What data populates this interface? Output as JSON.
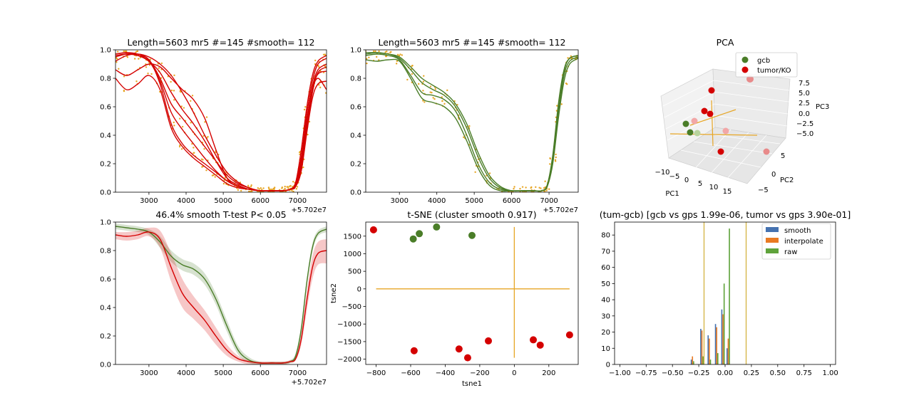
{
  "colors": {
    "red": "#d40000",
    "green": "#4a7d28",
    "orange": "#e7a626",
    "blue": "#4572b0",
    "hist_orange": "#e97a22",
    "hist_green": "#5fa33b",
    "vline": "#d3b240",
    "pink": "#f2a7a7",
    "lightgreen": "#b8d49e"
  },
  "chart_data": [
    {
      "id": "p1",
      "type": "line",
      "title": "Length=5603 mr5 #=145 #smooth= 112",
      "xlim": [
        2100,
        7780
      ],
      "ylim": [
        0,
        1
      ],
      "xticks": [
        {
          "v": 3000,
          "t": "3000"
        },
        {
          "v": 4000,
          "t": "4000"
        },
        {
          "v": 5000,
          "t": "5000"
        },
        {
          "v": 6000,
          "t": "6000"
        },
        {
          "v": 7000,
          "t": "7000"
        }
      ],
      "yticks": [
        {
          "v": 0,
          "t": "0.0"
        },
        {
          "v": 0.2,
          "t": "0.2"
        },
        {
          "v": 0.4,
          "t": "0.4"
        },
        {
          "v": 0.6,
          "t": "0.6"
        },
        {
          "v": 0.8,
          "t": "0.8"
        },
        {
          "v": 1.0,
          "t": "1.0"
        }
      ],
      "offset": "+5.702e7",
      "x": [
        2100,
        2400,
        2700,
        3000,
        3300,
        3600,
        3900,
        4200,
        4500,
        4800,
        5100,
        5400,
        5700,
        6000,
        6300,
        6600,
        6800,
        6950,
        7100,
        7250,
        7400,
        7550,
        7780
      ],
      "series": [
        {
          "values": [
            0.97,
            0.98,
            0.97,
            0.93,
            0.8,
            0.62,
            0.52,
            0.42,
            0.32,
            0.22,
            0.12,
            0.06,
            0.03,
            0.01,
            0.01,
            0.01,
            0.02,
            0.06,
            0.25,
            0.55,
            0.78,
            0.9,
            0.94
          ]
        },
        {
          "values": [
            0.95,
            0.97,
            0.96,
            0.92,
            0.78,
            0.56,
            0.44,
            0.34,
            0.24,
            0.15,
            0.08,
            0.04,
            0.02,
            0.01,
            0.01,
            0.01,
            0.02,
            0.05,
            0.22,
            0.5,
            0.74,
            0.86,
            0.9
          ]
        },
        {
          "values": [
            0.92,
            0.96,
            0.97,
            0.95,
            0.9,
            0.82,
            0.7,
            0.56,
            0.4,
            0.26,
            0.14,
            0.07,
            0.03,
            0.01,
            0.01,
            0.01,
            0.02,
            0.04,
            0.18,
            0.45,
            0.7,
            0.84,
            0.88
          ]
        },
        {
          "values": [
            0.86,
            0.82,
            0.86,
            0.9,
            0.88,
            0.8,
            0.72,
            0.65,
            0.52,
            0.3,
            0.1,
            0.04,
            0.02,
            0.01,
            0.01,
            0.01,
            0.02,
            0.05,
            0.2,
            0.48,
            0.72,
            0.83,
            0.85
          ]
        },
        {
          "values": [
            0.8,
            0.72,
            0.76,
            0.82,
            0.72,
            0.45,
            0.32,
            0.24,
            0.18,
            0.12,
            0.06,
            0.03,
            0.02,
            0.01,
            0.01,
            0.01,
            0.02,
            0.04,
            0.15,
            0.42,
            0.66,
            0.76,
            0.78
          ]
        },
        {
          "values": [
            0.97,
            0.98,
            0.96,
            0.93,
            0.76,
            0.48,
            0.34,
            0.26,
            0.2,
            0.14,
            0.08,
            0.04,
            0.02,
            0.01,
            0.01,
            0.01,
            0.02,
            0.07,
            0.3,
            0.6,
            0.82,
            0.92,
            0.96
          ]
        },
        {
          "values": [
            0.96,
            0.97,
            0.96,
            0.92,
            0.84,
            0.7,
            0.58,
            0.48,
            0.36,
            0.22,
            0.1,
            0.05,
            0.02,
            0.01,
            0.01,
            0.01,
            0.02,
            0.05,
            0.2,
            0.5,
            0.72,
            0.8,
            0.72
          ]
        }
      ]
    },
    {
      "id": "p2",
      "type": "line",
      "title": "Length=5603 mr5 #=145 #smooth= 112",
      "xlim": [
        2100,
        7780
      ],
      "ylim": [
        0,
        1
      ],
      "xticks": [
        {
          "v": 3000,
          "t": "3000"
        },
        {
          "v": 4000,
          "t": "4000"
        },
        {
          "v": 5000,
          "t": "5000"
        },
        {
          "v": 6000,
          "t": "6000"
        },
        {
          "v": 7000,
          "t": "7000"
        }
      ],
      "yticks": [
        {
          "v": 0,
          "t": "0.0"
        },
        {
          "v": 0.2,
          "t": "0.2"
        },
        {
          "v": 0.4,
          "t": "0.4"
        },
        {
          "v": 0.6,
          "t": "0.6"
        },
        {
          "v": 0.8,
          "t": "0.8"
        },
        {
          "v": 1.0,
          "t": "1.0"
        }
      ],
      "offset": "+5.702e7",
      "x": [
        2100,
        2400,
        2700,
        3000,
        3300,
        3600,
        3900,
        4200,
        4500,
        4800,
        5100,
        5400,
        5700,
        6000,
        6300,
        6600,
        6800,
        6950,
        7100,
        7250,
        7400,
        7550,
        7780
      ],
      "series": [
        {
          "values": [
            0.98,
            0.98,
            0.97,
            0.94,
            0.86,
            0.77,
            0.72,
            0.68,
            0.6,
            0.45,
            0.25,
            0.1,
            0.03,
            0.01,
            0.01,
            0.01,
            0.01,
            0.05,
            0.25,
            0.6,
            0.85,
            0.94,
            0.96
          ]
        },
        {
          "values": [
            0.96,
            0.97,
            0.96,
            0.93,
            0.82,
            0.7,
            0.68,
            0.65,
            0.57,
            0.4,
            0.2,
            0.07,
            0.02,
            0.01,
            0.01,
            0.01,
            0.01,
            0.04,
            0.22,
            0.55,
            0.82,
            0.92,
            0.95
          ]
        },
        {
          "values": [
            0.93,
            0.92,
            0.93,
            0.92,
            0.8,
            0.66,
            0.63,
            0.6,
            0.52,
            0.36,
            0.17,
            0.05,
            0.01,
            0.01,
            0.01,
            0.01,
            0.01,
            0.04,
            0.2,
            0.52,
            0.78,
            0.9,
            0.94
          ]
        },
        {
          "values": [
            0.97,
            0.98,
            0.97,
            0.95,
            0.88,
            0.8,
            0.75,
            0.7,
            0.62,
            0.48,
            0.28,
            0.12,
            0.04,
            0.01,
            0.01,
            0.01,
            0.01,
            0.05,
            0.26,
            0.62,
            0.86,
            0.94,
            0.96
          ]
        }
      ]
    },
    {
      "id": "p4",
      "type": "line",
      "title": "46.4% smooth T-test P< 0.05",
      "xlim": [
        2100,
        7780
      ],
      "ylim": [
        0,
        1
      ],
      "xticks": [
        {
          "v": 3000,
          "t": "3000"
        },
        {
          "v": 4000,
          "t": "4000"
        },
        {
          "v": 5000,
          "t": "5000"
        },
        {
          "v": 6000,
          "t": "6000"
        },
        {
          "v": 7000,
          "t": "7000"
        }
      ],
      "yticks": [
        {
          "v": 0,
          "t": "0.0"
        },
        {
          "v": 0.2,
          "t": "0.2"
        },
        {
          "v": 0.4,
          "t": "0.4"
        },
        {
          "v": 0.6,
          "t": "0.6"
        },
        {
          "v": 0.8,
          "t": "0.8"
        },
        {
          "v": 1.0,
          "t": "1.0"
        }
      ],
      "offset": "+5.702e7",
      "x": [
        2100,
        2400,
        2700,
        3000,
        3300,
        3600,
        3900,
        4200,
        4500,
        4800,
        5100,
        5400,
        5700,
        6000,
        6300,
        6600,
        6800,
        6950,
        7100,
        7250,
        7400,
        7550,
        7780
      ],
      "series": [
        {
          "color": "green",
          "values": [
            0.97,
            0.96,
            0.95,
            0.93,
            0.86,
            0.76,
            0.7,
            0.67,
            0.6,
            0.46,
            0.27,
            0.1,
            0.03,
            0.01,
            0.01,
            0.01,
            0.02,
            0.06,
            0.25,
            0.58,
            0.82,
            0.92,
            0.95
          ],
          "lower": [
            0.95,
            0.94,
            0.93,
            0.91,
            0.82,
            0.72,
            0.66,
            0.63,
            0.56,
            0.42,
            0.23,
            0.07,
            0.01,
            0.0,
            0.0,
            0.0,
            0.01,
            0.04,
            0.22,
            0.55,
            0.79,
            0.9,
            0.93
          ],
          "upper": [
            0.99,
            0.98,
            0.97,
            0.95,
            0.9,
            0.8,
            0.74,
            0.71,
            0.64,
            0.5,
            0.31,
            0.13,
            0.05,
            0.02,
            0.02,
            0.02,
            0.03,
            0.08,
            0.28,
            0.61,
            0.85,
            0.94,
            0.97
          ]
        },
        {
          "color": "red",
          "values": [
            0.91,
            0.9,
            0.91,
            0.93,
            0.88,
            0.68,
            0.5,
            0.4,
            0.31,
            0.2,
            0.1,
            0.04,
            0.02,
            0.01,
            0.01,
            0.01,
            0.02,
            0.04,
            0.18,
            0.45,
            0.68,
            0.78,
            0.8
          ],
          "lower": [
            0.88,
            0.87,
            0.88,
            0.9,
            0.82,
            0.58,
            0.4,
            0.32,
            0.24,
            0.14,
            0.06,
            0.02,
            0.0,
            0.0,
            0.0,
            0.0,
            0.01,
            0.03,
            0.14,
            0.38,
            0.6,
            0.7,
            0.71
          ],
          "upper": [
            0.93,
            0.93,
            0.94,
            0.96,
            0.94,
            0.78,
            0.6,
            0.48,
            0.38,
            0.26,
            0.14,
            0.06,
            0.03,
            0.02,
            0.02,
            0.02,
            0.03,
            0.05,
            0.22,
            0.52,
            0.76,
            0.86,
            0.88
          ]
        }
      ]
    },
    {
      "id": "p5",
      "type": "scatter",
      "title": "t-SNE (cluster smooth 0.917)",
      "xlabel": "tsne1",
      "ylabel": "tsne2",
      "xlim": [
        -860,
        370
      ],
      "ylim": [
        -2150,
        1900
      ],
      "xticks": [
        {
          "v": -800,
          "t": "−800"
        },
        {
          "v": -600,
          "t": "−600"
        },
        {
          "v": -400,
          "t": "−400"
        },
        {
          "v": -200,
          "t": "−200"
        },
        {
          "v": 0,
          "t": "0"
        },
        {
          "v": 200,
          "t": "200"
        }
      ],
      "yticks": [
        {
          "v": -2000,
          "t": "−2000"
        },
        {
          "v": -1500,
          "t": "−1500"
        },
        {
          "v": -1000,
          "t": "−1000"
        },
        {
          "v": -500,
          "t": "−500"
        },
        {
          "v": 0,
          "t": "0"
        },
        {
          "v": 500,
          "t": "500"
        },
        {
          "v": 1000,
          "t": "1000"
        },
        {
          "v": 1500,
          "t": "1500"
        }
      ],
      "series": [
        {
          "color": "green",
          "points": [
            [
              -585,
              1420
            ],
            [
              -550,
              1570
            ],
            [
              -450,
              1760
            ],
            [
              -245,
              1520
            ]
          ]
        },
        {
          "color": "red",
          "points": [
            [
              -815,
              1680
            ],
            [
              -580,
              -1760
            ],
            [
              -320,
              -1710
            ],
            [
              -270,
              -1960
            ],
            [
              -150,
              -1480
            ],
            [
              110,
              -1450
            ],
            [
              150,
              -1600
            ],
            [
              320,
              -1310
            ]
          ]
        }
      ],
      "cross": {
        "h": [
          [
            -800,
            0
          ],
          [
            320,
            0
          ]
        ],
        "v": [
          [
            0,
            -1960
          ],
          [
            0,
            1760
          ]
        ]
      }
    },
    {
      "id": "p6",
      "type": "bar",
      "title": "(tum-gcb) [gcb vs gps 1.99e-06, tumor vs gps 3.90e-01]",
      "xlim": [
        -1.05,
        1.05
      ],
      "ylim": [
        0,
        88
      ],
      "xticks": [
        {
          "v": -1.0,
          "t": "−1.00"
        },
        {
          "v": -0.75,
          "t": "−0.75"
        },
        {
          "v": -0.5,
          "t": "−0.50"
        },
        {
          "v": -0.25,
          "t": "−0.25"
        },
        {
          "v": 0.0,
          "t": "0.00"
        },
        {
          "v": 0.25,
          "t": "0.25"
        },
        {
          "v": 0.5,
          "t": "0.50"
        },
        {
          "v": 0.75,
          "t": "0.75"
        },
        {
          "v": 1.0,
          "t": "1.00"
        }
      ],
      "yticks": [
        {
          "v": 0,
          "t": "0"
        },
        {
          "v": 10,
          "t": "10"
        },
        {
          "v": 20,
          "t": "20"
        },
        {
          "v": 30,
          "t": "30"
        },
        {
          "v": 40,
          "t": "40"
        },
        {
          "v": 50,
          "t": "50"
        },
        {
          "v": 60,
          "t": "60"
        },
        {
          "v": 70,
          "t": "70"
        },
        {
          "v": 80,
          "t": "80"
        }
      ],
      "bin_centers": [
        -0.31,
        -0.22,
        -0.15,
        -0.08,
        -0.02,
        0.03
      ],
      "series": [
        {
          "name": "smooth",
          "color": "blue",
          "values": [
            3,
            22,
            18,
            25,
            34,
            10
          ]
        },
        {
          "name": "interpolate",
          "color": "hist_orange",
          "values": [
            5,
            21,
            16,
            23,
            31,
            16
          ]
        },
        {
          "name": "raw",
          "color": "hist_green",
          "values": [
            2,
            5,
            3,
            7,
            50,
            84
          ]
        }
      ],
      "vlines": [
        -0.2,
        0.2
      ]
    },
    {
      "id": "p3",
      "type": "scatter3d",
      "title": "PCA",
      "xlabel": "PC1",
      "ylabel": "PC2",
      "zlabel": "PC3",
      "xticks": [
        "−10",
        "−5",
        "0",
        "5",
        "10",
        "15"
      ],
      "yticks": [
        "5",
        "0",
        "−5"
      ],
      "zticks": [
        "7.5",
        "5.0",
        "2.5",
        "0.0",
        "−2.5",
        "−5.0"
      ],
      "legend": [
        {
          "name": "gcb",
          "color": "green"
        },
        {
          "name": "tumor/KO",
          "color": "red"
        }
      ]
    }
  ]
}
